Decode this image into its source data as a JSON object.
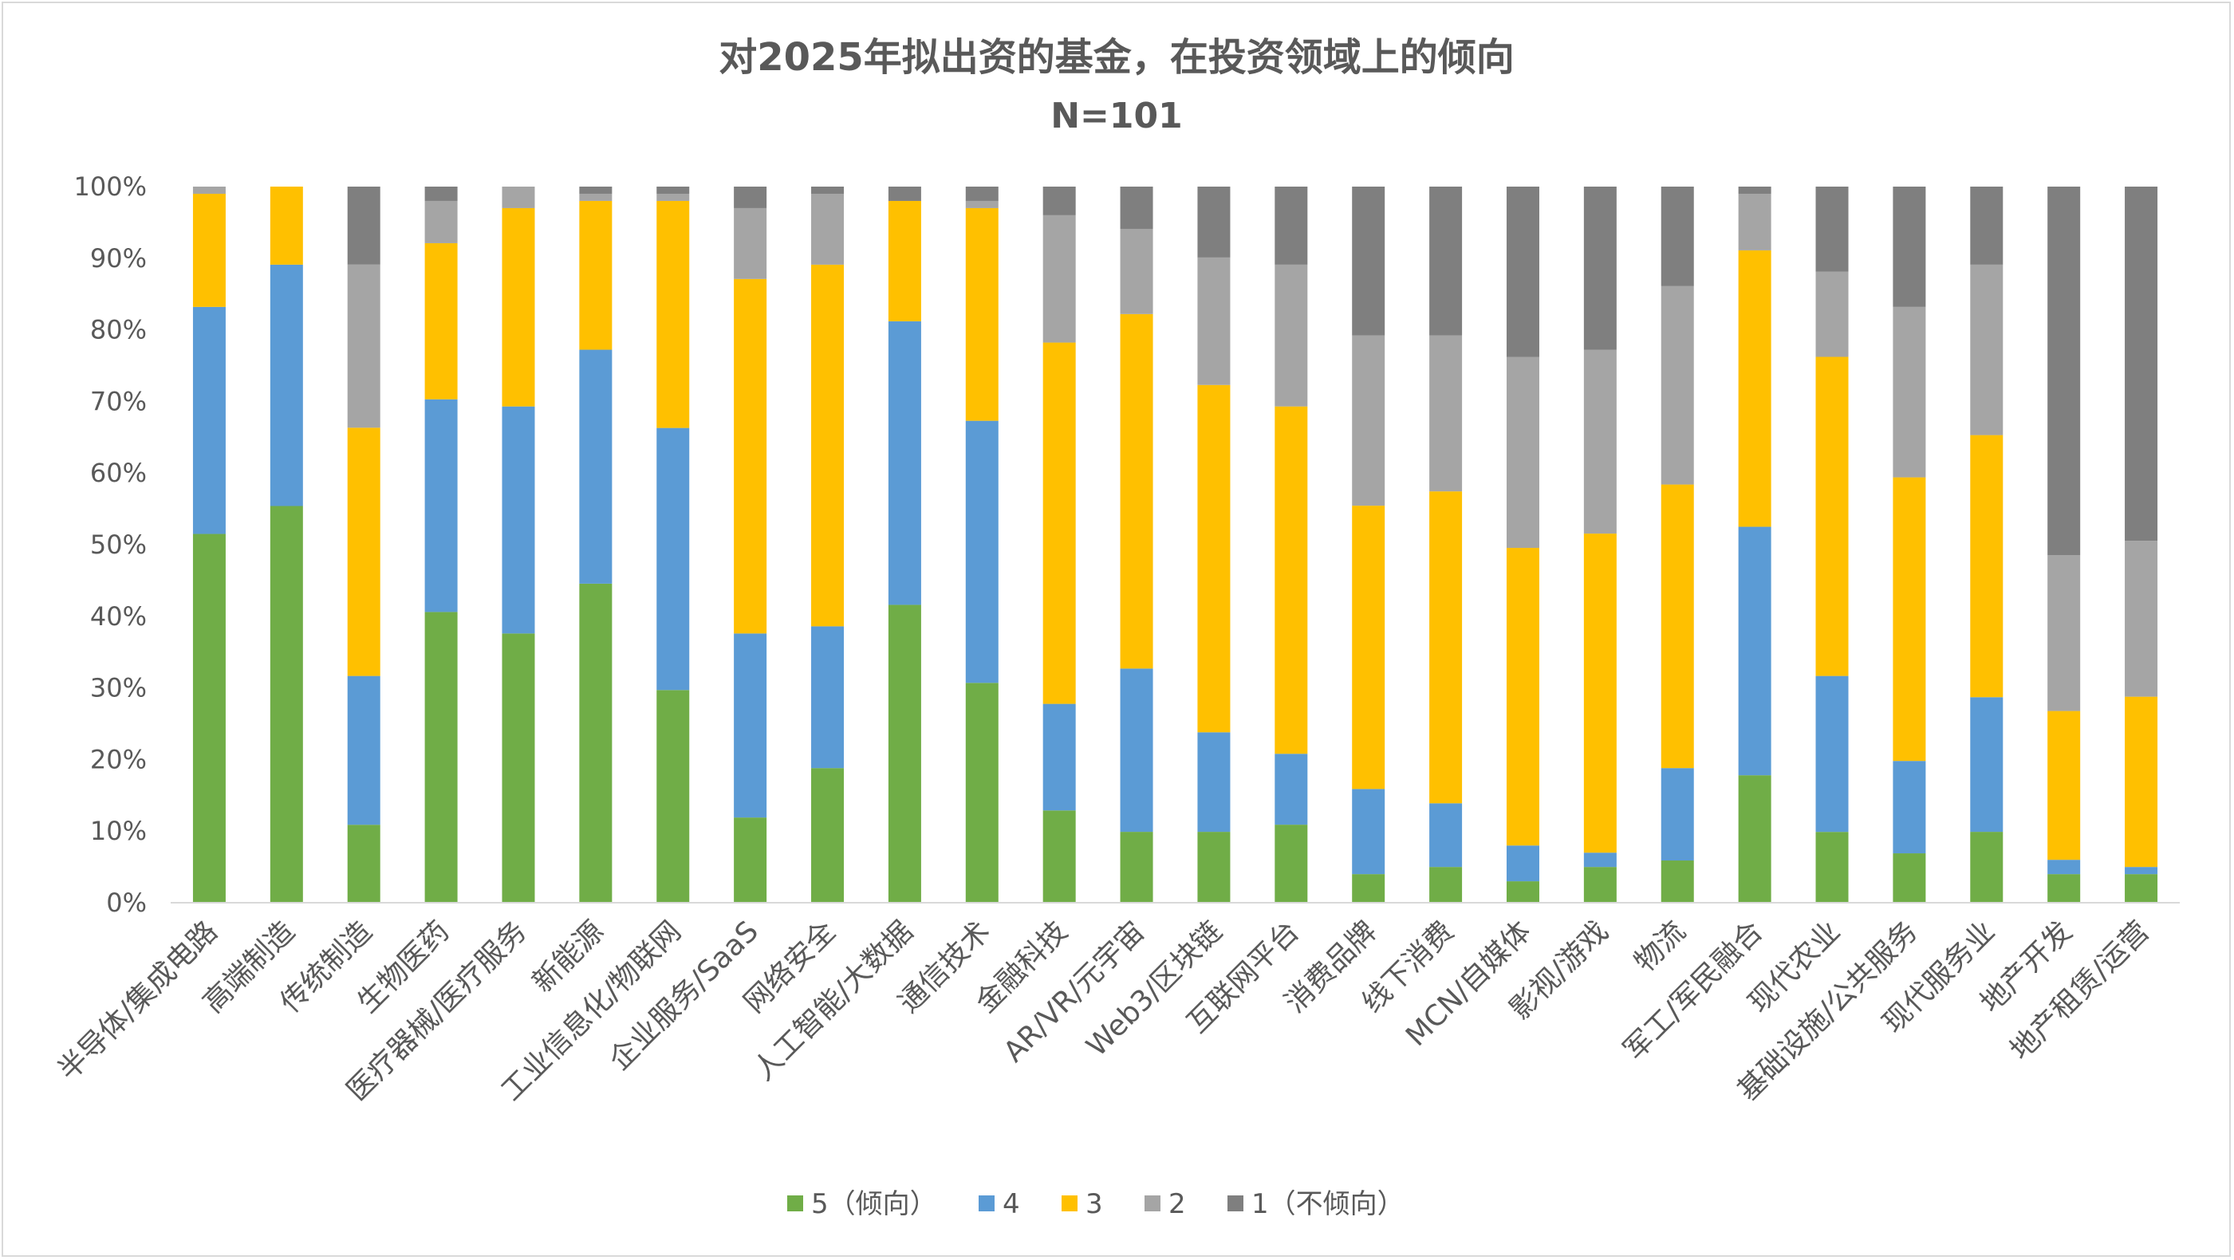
{
  "chart_data": {
    "type": "bar",
    "stacked": "percent",
    "title": "对2025年拟出资的基金，在投资领域上的倾向",
    "subtitle": "N=101",
    "xlabel": "",
    "ylabel": "",
    "ylim": [
      0,
      100
    ],
    "yticks": [
      "0%",
      "10%",
      "20%",
      "30%",
      "40%",
      "50%",
      "60%",
      "70%",
      "80%",
      "90%",
      "100%"
    ],
    "grid": false,
    "legend_position": "bottom",
    "categories": [
      "半导体/集成电路",
      "高端制造",
      "传统制造",
      "生物医药",
      "医疗器械/医疗服务",
      "新能源",
      "工业信息化/物联网",
      "企业服务/SaaS",
      "网络安全",
      "人工智能/大数据",
      "通信技术",
      "金融科技",
      "AR/VR/元宇宙",
      "Web3/区块链",
      "互联网平台",
      "消费品牌",
      "线下消费",
      "MCN/自媒体",
      "影视/游戏",
      "物流",
      "军工/军民融合",
      "现代农业",
      "基础设施/公共服务",
      "现代服务业",
      "地产开发",
      "地产租赁/运营"
    ],
    "series": [
      {
        "name": "5（倾向）",
        "color": "#70AD47",
        "values": [
          51.5,
          55.4,
          10.9,
          40.6,
          37.6,
          44.6,
          29.7,
          11.9,
          18.8,
          41.6,
          30.7,
          12.9,
          9.9,
          9.9,
          10.9,
          4.0,
          5.0,
          3.0,
          5.0,
          5.9,
          17.8,
          9.9,
          6.9,
          9.9,
          4.0,
          4.0
        ]
      },
      {
        "name": "4",
        "color": "#5B9BD5",
        "values": [
          31.7,
          33.7,
          20.8,
          29.7,
          31.7,
          32.7,
          36.6,
          25.7,
          19.8,
          39.6,
          36.6,
          14.9,
          22.8,
          13.9,
          9.9,
          11.9,
          8.9,
          5.0,
          2.0,
          12.9,
          34.7,
          21.8,
          12.9,
          18.8,
          2.0,
          1.0
        ]
      },
      {
        "name": "3",
        "color": "#FFC000",
        "values": [
          15.8,
          10.9,
          34.7,
          21.8,
          27.7,
          20.8,
          31.7,
          49.5,
          50.5,
          16.8,
          29.7,
          50.5,
          49.5,
          48.5,
          48.5,
          39.6,
          43.6,
          41.6,
          44.6,
          39.6,
          38.6,
          44.6,
          39.6,
          36.6,
          20.8,
          23.8
        ]
      },
      {
        "name": "2",
        "color": "#A5A5A5",
        "values": [
          1.0,
          0,
          22.8,
          5.9,
          3.0,
          1.0,
          1.0,
          9.9,
          9.9,
          0,
          1.0,
          17.8,
          11.9,
          17.8,
          19.8,
          23.8,
          21.8,
          26.7,
          25.7,
          27.7,
          7.9,
          11.9,
          23.8,
          23.8,
          21.8,
          21.8
        ]
      },
      {
        "name": "1（不倾向）",
        "color": "#7F7F7F",
        "values": [
          0,
          0,
          10.9,
          2.0,
          0,
          1.0,
          1.0,
          3.0,
          1.0,
          2.0,
          2.0,
          4.0,
          5.9,
          9.9,
          10.9,
          20.8,
          20.8,
          23.8,
          22.8,
          13.9,
          1.0,
          11.9,
          16.8,
          10.9,
          51.5,
          49.5
        ]
      }
    ]
  }
}
